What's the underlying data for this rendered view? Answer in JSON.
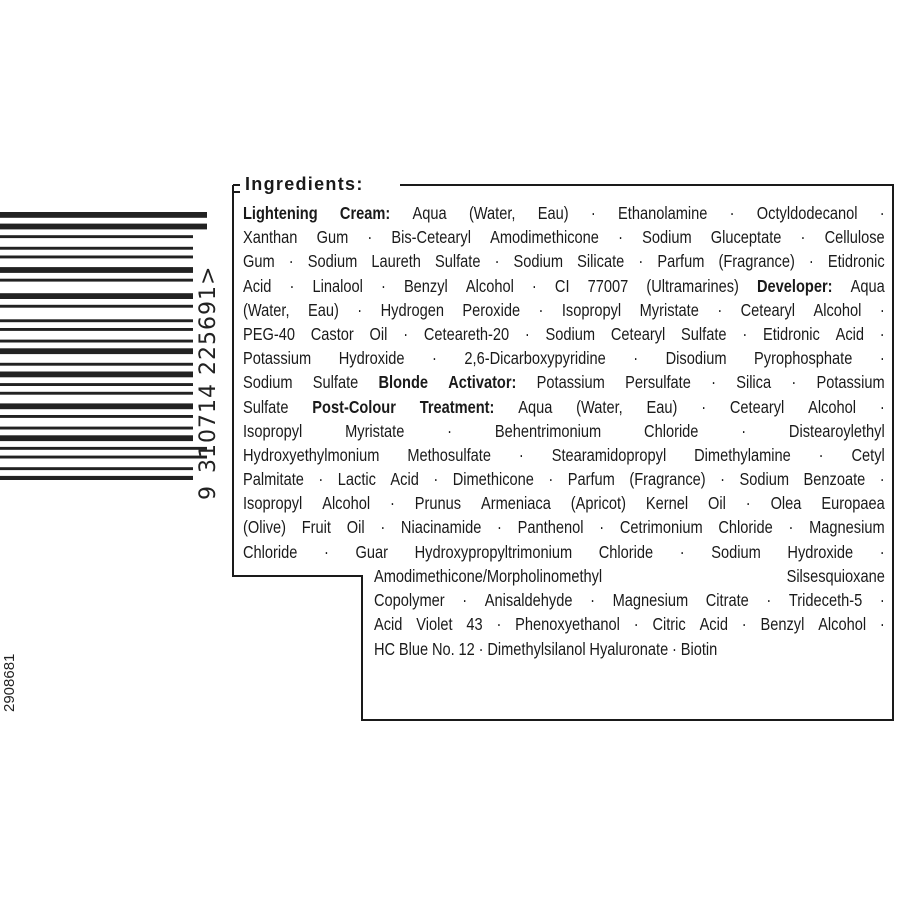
{
  "barcode": {
    "first_digit": "9",
    "group1": "310714",
    "group2": "225691",
    "end_mark": ">"
  },
  "product_code": "2908681",
  "ingredients": {
    "heading": "Ingredients:",
    "top_lines": [
      [
        [
          "Lightening Cream:",
          true
        ],
        [
          "Aqua (Water, Eau) · Ethanolamine · Octyldodecanol ·",
          false
        ]
      ],
      [
        [
          "Xanthan Gum · Bis-Cetearyl Amodimethicone · Sodium Gluceptate · Cellulose",
          false
        ]
      ],
      [
        [
          "Gum · Sodium Laureth Sulfate · Sodium Silicate · Parfum (Fragrance) · Etidronic",
          false
        ]
      ],
      [
        [
          "Acid · Linalool · Benzyl Alcohol · CI 77007 (Ultramarines)",
          false
        ],
        [
          "Developer:",
          true
        ],
        [
          "Aqua",
          false
        ]
      ],
      [
        [
          "(Water, Eau) · Hydrogen Peroxide · Isopropyl Myristate · Cetearyl Alcohol ·",
          false
        ]
      ],
      [
        [
          "PEG-40 Castor Oil · Ceteareth-20 · Sodium Cetearyl Sulfate · Etidronic Acid ·",
          false
        ]
      ],
      [
        [
          "Potassium Hydroxide · 2,6-Dicarboxypyridine · Disodium Pyrophosphate ·",
          false
        ]
      ],
      [
        [
          "Sodium Sulfate",
          false
        ],
        [
          "Blonde Activator:",
          true
        ],
        [
          "Potassium Persulfate · Silica · Potassium",
          false
        ]
      ],
      [
        [
          "Sulfate",
          false
        ],
        [
          "Post-Colour Treatment:",
          true
        ],
        [
          "Aqua (Water, Eau) · Cetearyl Alcohol ·",
          false
        ]
      ],
      [
        [
          "Isopropyl Myristate · Behentrimonium Chloride · Distearoylethyl",
          false
        ]
      ],
      [
        [
          "Hydroxyethylmonium Methosulfate · Stearamidopropyl Dimethylamine · Cetyl",
          false
        ]
      ],
      [
        [
          "Palmitate · Lactic Acid · Dimethicone · Parfum (Fragrance) · Sodium Benzoate ·",
          false
        ]
      ],
      [
        [
          "Isopropyl Alcohol · Prunus Armeniaca (Apricot) Kernel Oil · Olea Europaea",
          false
        ]
      ],
      [
        [
          "(Olive) Fruit Oil · Niacinamide · Panthenol · Cetrimonium Chloride · Magnesium",
          false
        ]
      ],
      [
        [
          "Chloride · Guar Hydroxypropyltrimonium Chloride · Sodium Hydroxide ·",
          false
        ]
      ]
    ],
    "bottom_lines": [
      [
        [
          "Amodimethicone/Morpholinomethyl Silsesquioxane",
          false
        ]
      ],
      [
        [
          "Copolymer · Anisaldehyde · Magnesium Citrate · Trideceth-5 ·",
          false
        ]
      ],
      [
        [
          "Acid Violet 43 · Phenoxyethanol · Citric Acid · Benzyl Alcohol ·",
          false
        ]
      ],
      [
        [
          "HC Blue No. 12 · Dimethylsilanol Hyaluronate · Biotin",
          false
        ]
      ]
    ]
  }
}
